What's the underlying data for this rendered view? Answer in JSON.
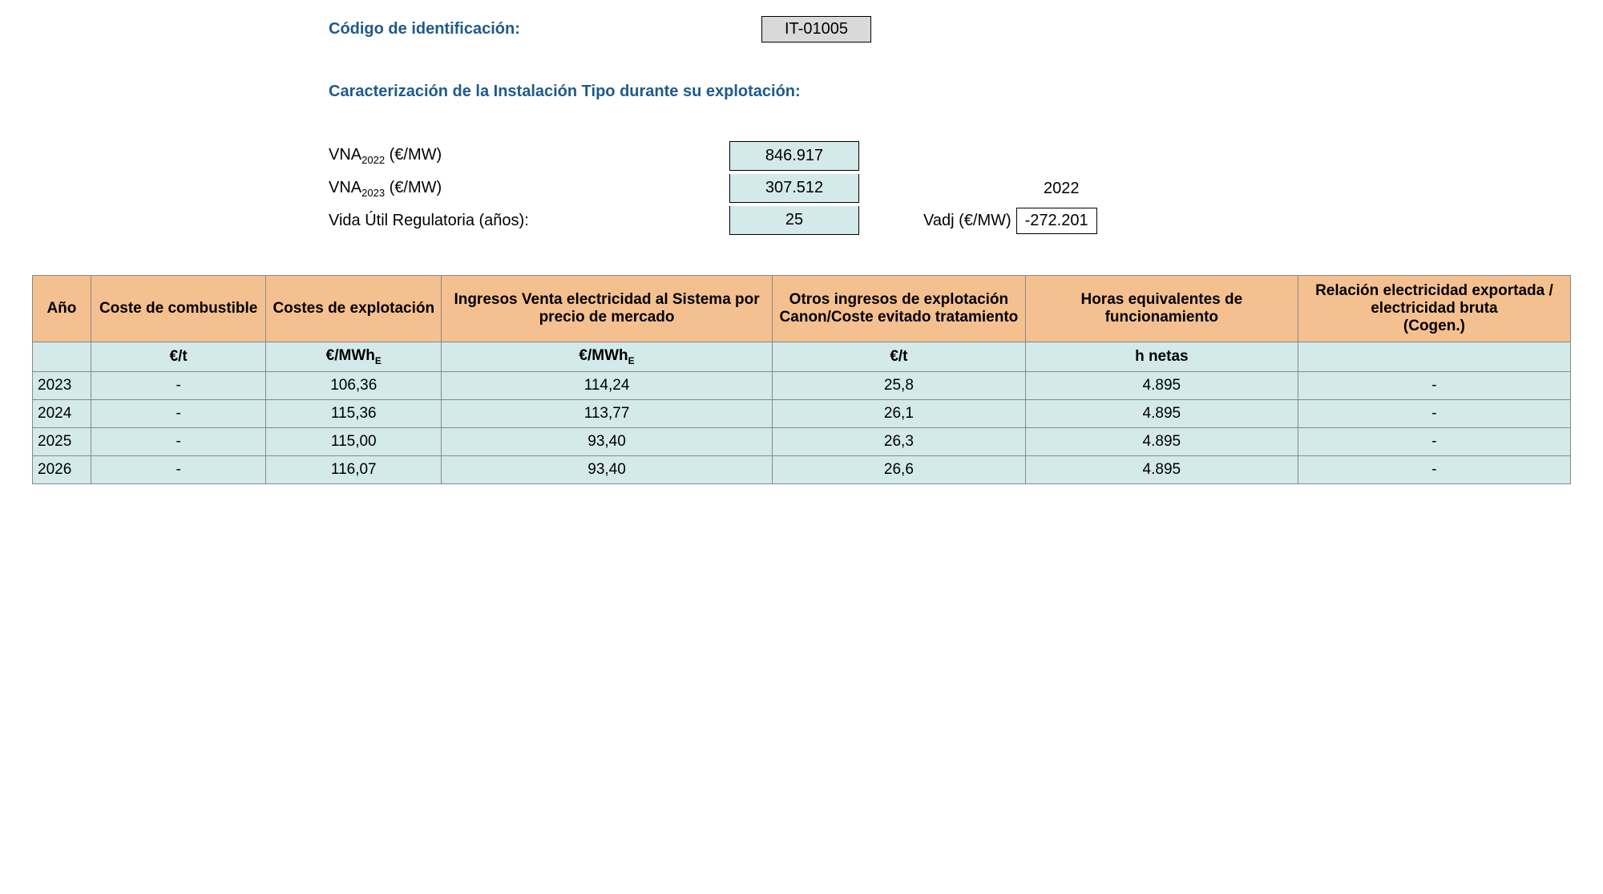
{
  "header": {
    "id_label": "Código de identificación:",
    "id_value": "IT-01005"
  },
  "section_title": "Caracterización de la Instalación Tipo durante su explotación:",
  "params": {
    "vna2022_label_prefix": "VNA",
    "vna2022_sub": "2022",
    "vna2022_unit": " (€/MW)",
    "vna2022_value": "846.917",
    "vna2023_label_prefix": "VNA",
    "vna2023_sub": "2023",
    "vna2023_unit": " (€/MW)",
    "vna2023_value": "307.512",
    "year_ref": "2022",
    "vida_label": "Vida Útil Regulatoria (años):",
    "vida_value": "25",
    "vadj_label": "Vadj (€/MW)",
    "vadj_value": "-272.201"
  },
  "table": {
    "columns": [
      "Año",
      "Coste de combustible",
      "Costes de explotación",
      "Ingresos Venta electricidad al Sistema por precio de mercado",
      "Otros ingresos de explotación Canon/Coste evitado tratamiento",
      "Horas equivalentes de funcionamiento",
      "Relación electricidad exportada / electricidad bruta\n(Cogen.)"
    ],
    "col_widths": [
      "60px",
      "180px",
      "180px",
      "340px",
      "260px",
      "280px",
      "280px"
    ],
    "units": [
      "",
      "€/t",
      "€/MWhE",
      "€/MWhE",
      "€/t",
      "h netas",
      ""
    ],
    "rows": [
      [
        "2023",
        "-",
        "106,36",
        "114,24",
        "25,8",
        "4.895",
        "-"
      ],
      [
        "2024",
        "-",
        "115,36",
        "113,77",
        "26,1",
        "4.895",
        "-"
      ],
      [
        "2025",
        "-",
        "115,00",
        "93,40",
        "26,3",
        "4.895",
        "-"
      ],
      [
        "2026",
        "-",
        "116,07",
        "93,40",
        "26,6",
        "4.895",
        "-"
      ]
    ]
  },
  "colors": {
    "header_bg": "#f4c090",
    "cell_bg": "#d4e9ea",
    "id_box_bg": "#d9d9d9",
    "blue_text": "#1f5a8a",
    "border": "#888888"
  }
}
